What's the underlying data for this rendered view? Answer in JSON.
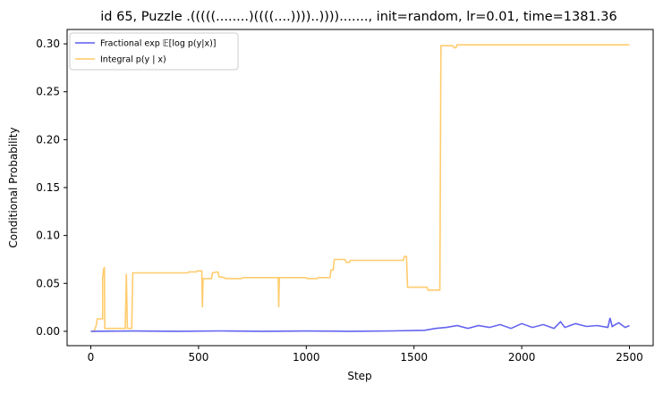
{
  "chart_data": {
    "type": "line",
    "title": "id 65, Puzzle .(((((........)((((....))))..)))).......,  init=random, lr=0.01, time=1381.36",
    "xlabel": "Step",
    "ylabel": "Conditional Probability",
    "xlim": [
      -110,
      2610
    ],
    "ylim": [
      -0.015,
      0.315
    ],
    "xticks": [
      0,
      500,
      1000,
      1500,
      2000,
      2500
    ],
    "xtick_labels": [
      "0",
      "500",
      "1000",
      "1500",
      "2000",
      "2500"
    ],
    "yticks": [
      0.0,
      0.05,
      0.1,
      0.15,
      0.2,
      0.25,
      0.3
    ],
    "ytick_labels": [
      "0.00",
      "0.05",
      "0.10",
      "0.15",
      "0.20",
      "0.25",
      "0.30"
    ],
    "grid": false,
    "legend_position": "top-left",
    "series": [
      {
        "name": "Fractional exp 𝔼[log p(y|x)]",
        "color": "#5b5bef",
        "points": [
          [
            0,
            0.0
          ],
          [
            200,
            0.0003
          ],
          [
            400,
            0.0
          ],
          [
            600,
            0.0004
          ],
          [
            800,
            0.0
          ],
          [
            1000,
            0.0003
          ],
          [
            1200,
            0.0
          ],
          [
            1400,
            0.0004
          ],
          [
            1550,
            0.001
          ],
          [
            1600,
            0.003
          ],
          [
            1650,
            0.004
          ],
          [
            1700,
            0.006
          ],
          [
            1750,
            0.003
          ],
          [
            1800,
            0.006
          ],
          [
            1850,
            0.004
          ],
          [
            1900,
            0.007
          ],
          [
            1950,
            0.003
          ],
          [
            2000,
            0.008
          ],
          [
            2050,
            0.004
          ],
          [
            2100,
            0.007
          ],
          [
            2150,
            0.003
          ],
          [
            2180,
            0.01
          ],
          [
            2200,
            0.004
          ],
          [
            2250,
            0.008
          ],
          [
            2300,
            0.005
          ],
          [
            2350,
            0.006
          ],
          [
            2400,
            0.004
          ],
          [
            2410,
            0.014
          ],
          [
            2420,
            0.005
          ],
          [
            2450,
            0.009
          ],
          [
            2480,
            0.004
          ],
          [
            2500,
            0.006
          ]
        ]
      },
      {
        "name": "Integral p(y | x)",
        "color": "#ffc966",
        "points": [
          [
            0,
            0.0
          ],
          [
            15,
            0.0
          ],
          [
            25,
            0.006
          ],
          [
            30,
            0.013
          ],
          [
            55,
            0.013
          ],
          [
            55,
            0.055
          ],
          [
            60,
            0.065
          ],
          [
            63,
            0.067
          ],
          [
            65,
            0.003
          ],
          [
            160,
            0.003
          ],
          [
            165,
            0.06
          ],
          [
            170,
            0.003
          ],
          [
            190,
            0.003
          ],
          [
            195,
            0.061
          ],
          [
            450,
            0.061
          ],
          [
            455,
            0.062
          ],
          [
            490,
            0.062
          ],
          [
            495,
            0.063
          ],
          [
            515,
            0.063
          ],
          [
            518,
            0.025
          ],
          [
            521,
            0.055
          ],
          [
            560,
            0.055
          ],
          [
            565,
            0.061
          ],
          [
            590,
            0.062
          ],
          [
            595,
            0.057
          ],
          [
            620,
            0.056
          ],
          [
            625,
            0.055
          ],
          [
            700,
            0.055
          ],
          [
            705,
            0.056
          ],
          [
            870,
            0.056
          ],
          [
            872,
            0.025
          ],
          [
            875,
            0.056
          ],
          [
            1000,
            0.056
          ],
          [
            1005,
            0.055
          ],
          [
            1050,
            0.055
          ],
          [
            1055,
            0.056
          ],
          [
            1110,
            0.056
          ],
          [
            1115,
            0.064
          ],
          [
            1125,
            0.064
          ],
          [
            1130,
            0.075
          ],
          [
            1180,
            0.075
          ],
          [
            1185,
            0.072
          ],
          [
            1200,
            0.072
          ],
          [
            1205,
            0.074
          ],
          [
            1450,
            0.074
          ],
          [
            1455,
            0.078
          ],
          [
            1465,
            0.078
          ],
          [
            1470,
            0.046
          ],
          [
            1560,
            0.046
          ],
          [
            1565,
            0.043
          ],
          [
            1620,
            0.043
          ],
          [
            1625,
            0.298
          ],
          [
            1680,
            0.298
          ],
          [
            1685,
            0.296
          ],
          [
            1695,
            0.296
          ],
          [
            1700,
            0.299
          ],
          [
            2500,
            0.299
          ]
        ]
      }
    ]
  }
}
